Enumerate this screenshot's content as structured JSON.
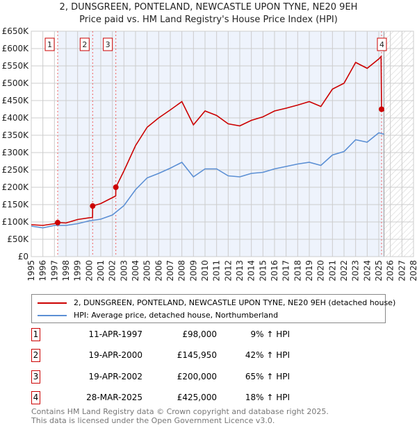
{
  "chart_data": {
    "type": "line",
    "title": "2, DUNSGREEN, PONTELAND, NEWCASTLE UPON TYNE, NE20 9EH",
    "subtitle": "Price paid vs. HM Land Registry's House Price Index (HPI)",
    "xlim": [
      1995,
      2028
    ],
    "ylim": [
      0,
      650000
    ],
    "x_ticks": [
      "1995",
      "1996",
      "1997",
      "1998",
      "1999",
      "2000",
      "2001",
      "2002",
      "2003",
      "2004",
      "2005",
      "2006",
      "2007",
      "2008",
      "2009",
      "2010",
      "2011",
      "2012",
      "2013",
      "2014",
      "2015",
      "2016",
      "2017",
      "2018",
      "2019",
      "2020",
      "2021",
      "2022",
      "2023",
      "2024",
      "2025",
      "2026",
      "2027",
      "2028"
    ],
    "y_ticks": [
      "£0",
      "£50K",
      "£100K",
      "£150K",
      "£200K",
      "£250K",
      "£300K",
      "£350K",
      "£400K",
      "£450K",
      "£500K",
      "£550K",
      "£600K",
      "£650K"
    ],
    "grid": true,
    "data_end_year": 2025.45,
    "series": [
      {
        "name": "2, DUNSGREEN, PONTELAND, NEWCASTLE UPON TYNE, NE20 9EH (detached house)",
        "color": "#cc0000",
        "x": [
          1995,
          1996,
          1997,
          1997.28,
          1998,
          1999,
          2000,
          2000.29,
          2000.3,
          2001,
          2002,
          2002.29,
          2002.3,
          2003,
          2004,
          2005,
          2006,
          2007,
          2008,
          2009,
          2010,
          2011,
          2012,
          2013,
          2014,
          2015,
          2016,
          2017,
          2018,
          2019,
          2020,
          2021,
          2022,
          2023,
          2024,
          2025,
          2025.2,
          2025.24,
          2025.45
        ],
        "y": [
          92000,
          90000,
          95000,
          98000,
          97000,
          107000,
          112000,
          113000,
          145950,
          153000,
          170000,
          175000,
          200000,
          247000,
          320000,
          373000,
          400000,
          423000,
          447000,
          380000,
          420000,
          407000,
          383000,
          377000,
          393000,
          403000,
          420000,
          428000,
          437000,
          447000,
          433000,
          483000,
          500000,
          560000,
          543000,
          570000,
          577000,
          425000,
          420000
        ]
      },
      {
        "name": "HPI: Average price, detached house, Northumberland",
        "color": "#5b8fd4",
        "x": [
          1995,
          1996,
          1997,
          1998,
          1999,
          2000,
          2001,
          2002,
          2003,
          2004,
          2005,
          2006,
          2007,
          2008,
          2009,
          2010,
          2011,
          2012,
          2013,
          2014,
          2015,
          2016,
          2017,
          2018,
          2019,
          2020,
          2021,
          2022,
          2023,
          2024,
          2025,
          2025.45
        ],
        "y": [
          88000,
          83000,
          90000,
          90000,
          95000,
          103000,
          108000,
          120000,
          147000,
          193000,
          227000,
          240000,
          255000,
          272000,
          230000,
          253000,
          253000,
          233000,
          230000,
          240000,
          243000,
          253000,
          260000,
          267000,
          272000,
          263000,
          293000,
          303000,
          337000,
          330000,
          357000,
          353000
        ]
      }
    ],
    "sales": [
      {
        "label": "1",
        "x": 1997.28,
        "y": 98000,
        "date": "11-APR-1997",
        "price": "£98,000",
        "hpi": "9% ↑ HPI"
      },
      {
        "label": "2",
        "x": 2000.3,
        "y": 145950,
        "date": "19-APR-2000",
        "price": "£145,950",
        "hpi": "42% ↑ HPI"
      },
      {
        "label": "3",
        "x": 2002.3,
        "y": 200000,
        "date": "19-APR-2002",
        "price": "£200,000",
        "hpi": "65% ↑ HPI"
      },
      {
        "label": "4",
        "x": 2025.24,
        "y": 425000,
        "date": "28-MAR-2025",
        "price": "£425,000",
        "hpi": "18% ↑ HPI"
      }
    ]
  },
  "legend": {
    "red": "2, DUNSGREEN, PONTELAND, NEWCASTLE UPON TYNE, NE20 9EH (detached house)",
    "blue": "HPI: Average price, detached house, Northumberland"
  },
  "footer": {
    "line1": "Contains HM Land Registry data © Crown copyright and database right 2025.",
    "line2": "This data is licensed under the Open Government Licence v3.0."
  }
}
